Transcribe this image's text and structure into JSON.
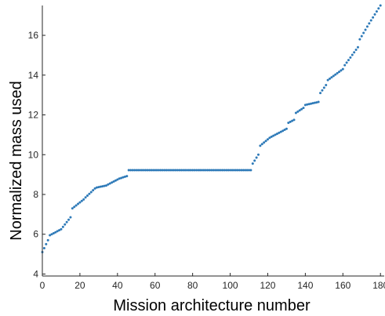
{
  "chart_data": {
    "type": "scatter",
    "xlabel": "Mission architecture number",
    "ylabel": "Normalized mass used",
    "xlim": [
      0,
      182
    ],
    "ylim": [
      3.9,
      17.5
    ],
    "xticks": [
      0,
      20,
      40,
      60,
      80,
      100,
      120,
      140,
      160,
      180
    ],
    "yticks": [
      4,
      6,
      8,
      10,
      12,
      14,
      16
    ],
    "grid": false,
    "legend": "none",
    "series": [
      {
        "color": "#2e7ab8",
        "segments": [
          {
            "x_start": 0,
            "x_end": 3,
            "y_start": 5.1,
            "y_end": 5.7
          },
          {
            "x_start": 4,
            "x_end": 9,
            "y_start": 5.95,
            "y_end": 6.2
          },
          {
            "x_start": 10,
            "x_end": 15,
            "y_start": 6.25,
            "y_end": 6.85
          },
          {
            "x_start": 16,
            "x_end": 22,
            "y_start": 7.3,
            "y_end": 7.75
          },
          {
            "x_start": 23,
            "x_end": 28,
            "y_start": 7.85,
            "y_end": 8.3
          },
          {
            "x_start": 29,
            "x_end": 34,
            "y_start": 8.35,
            "y_end": 8.45
          },
          {
            "x_start": 35,
            "x_end": 40,
            "y_start": 8.5,
            "y_end": 8.75
          },
          {
            "x_start": 41,
            "x_end": 45,
            "y_start": 8.8,
            "y_end": 8.92
          },
          {
            "x_start": 46,
            "x_end": 111,
            "y_start": 9.22,
            "y_end": 9.22
          },
          {
            "x_start": 112,
            "x_end": 115,
            "y_start": 9.55,
            "y_end": 10.0
          },
          {
            "x_start": 116,
            "x_end": 121,
            "y_start": 10.45,
            "y_end": 10.85
          },
          {
            "x_start": 122,
            "x_end": 130,
            "y_start": 10.9,
            "y_end": 11.3
          },
          {
            "x_start": 131,
            "x_end": 134,
            "y_start": 11.6,
            "y_end": 11.75
          },
          {
            "x_start": 135,
            "x_end": 139,
            "y_start": 12.1,
            "y_end": 12.35
          },
          {
            "x_start": 140,
            "x_end": 147,
            "y_start": 12.5,
            "y_end": 12.65
          },
          {
            "x_start": 148,
            "x_end": 151,
            "y_start": 13.1,
            "y_end": 13.5
          },
          {
            "x_start": 152,
            "x_end": 160,
            "y_start": 13.75,
            "y_end": 14.3
          },
          {
            "x_start": 161,
            "x_end": 168,
            "y_start": 14.5,
            "y_end": 15.4
          },
          {
            "x_start": 169,
            "x_end": 174,
            "y_start": 15.8,
            "y_end": 16.6
          },
          {
            "x_start": 175,
            "x_end": 180,
            "y_start": 16.75,
            "y_end": 17.5
          }
        ]
      }
    ]
  }
}
